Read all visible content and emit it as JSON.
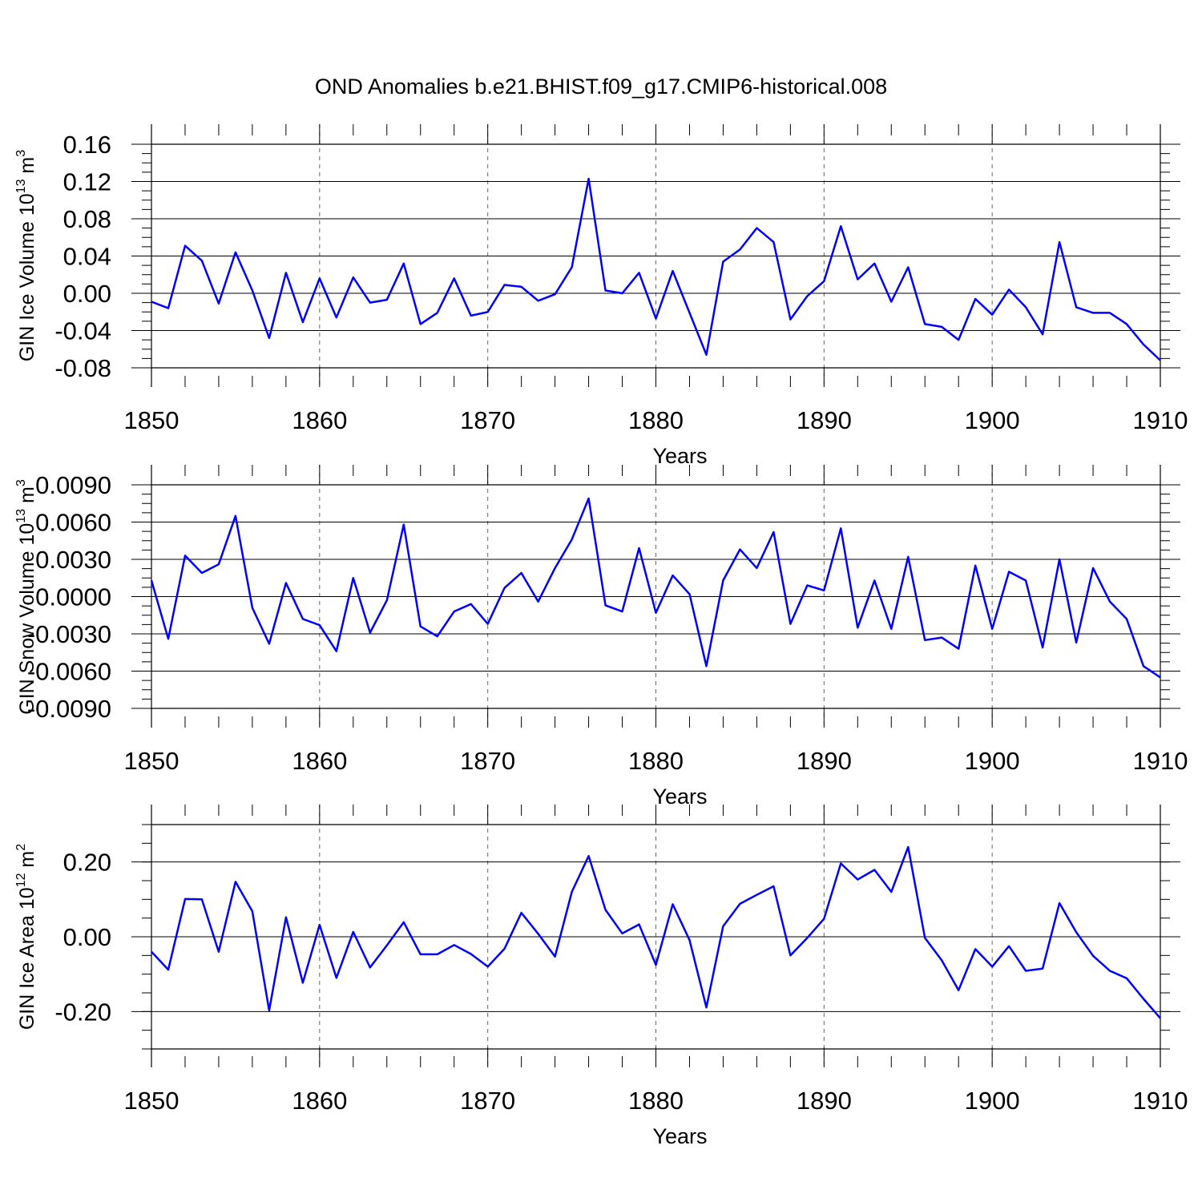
{
  "title": "OND Anomalies b.e21.BHIST.f09_g17.CMIP6-historical.008",
  "chart_data": [
    {
      "type": "line",
      "name": "ice-volume",
      "ylabel": "GIN Ice Volume 10",
      "ylabel_sup": "13",
      "ylabel_units": " m",
      "ylabel_units_sup": "3",
      "xlabel": "Years",
      "xlim": [
        1850,
        1910
      ],
      "ylim": [
        -0.08,
        0.16
      ],
      "yticks": [
        0.16,
        0.12,
        0.08,
        0.04,
        0.0,
        -0.04,
        -0.08
      ],
      "ytick_labels": [
        "0.16",
        "0.12",
        "0.08",
        "0.04",
        "0.00",
        "-0.04",
        "-0.08"
      ],
      "xticks": [
        1850,
        1860,
        1870,
        1880,
        1890,
        1900,
        1910
      ],
      "xtick_labels": [
        "1850",
        "1860",
        "1870",
        "1880",
        "1890",
        "1900",
        "1910"
      ],
      "color": "#0000ff",
      "x_start": 1850,
      "values": [
        -0.009,
        -0.016,
        0.051,
        0.035,
        -0.011,
        0.044,
        0.003,
        -0.048,
        0.022,
        -0.031,
        0.016,
        -0.026,
        0.017,
        -0.01,
        -0.007,
        0.032,
        -0.033,
        -0.021,
        0.016,
        -0.024,
        -0.02,
        0.009,
        0.007,
        -0.008,
        -0.001,
        0.028,
        0.123,
        0.003,
        0.0,
        0.022,
        -0.027,
        0.024,
        -0.021,
        -0.066,
        0.034,
        0.047,
        0.07,
        0.055,
        -0.028,
        -0.003,
        0.013,
        0.072,
        0.015,
        0.032,
        -0.009,
        0.028,
        -0.033,
        -0.036,
        -0.05,
        -0.006,
        -0.023,
        0.004,
        -0.015,
        -0.044,
        0.055,
        -0.015,
        -0.021,
        -0.021,
        -0.033,
        -0.055,
        -0.072
      ]
    },
    {
      "type": "line",
      "name": "snow-volume",
      "ylabel": "GIN Snow Volume 10",
      "ylabel_sup": "13",
      "ylabel_units": " m",
      "ylabel_units_sup": "3",
      "xlabel": "Years",
      "xlim": [
        1850,
        1910
      ],
      "ylim": [
        -0.009,
        0.009
      ],
      "yticks": [
        0.009,
        0.006,
        0.003,
        0.0,
        -0.003,
        -0.006,
        -0.009
      ],
      "ytick_labels": [
        "0.0090",
        "0.0060",
        "0.0030",
        "0.0000",
        "-0.0030",
        "-0.0060",
        "-0.0090"
      ],
      "xticks": [
        1850,
        1860,
        1870,
        1880,
        1890,
        1900,
        1910
      ],
      "xtick_labels": [
        "1850",
        "1860",
        "1870",
        "1880",
        "1890",
        "1900",
        "1910"
      ],
      "color": "#0000ff",
      "x_start": 1850,
      "values": [
        0.0013,
        -0.0034,
        0.0033,
        0.0019,
        0.0026,
        0.0065,
        -0.0009,
        -0.0038,
        0.0011,
        -0.0018,
        -0.0023,
        -0.0044,
        0.0015,
        -0.0029,
        -0.0003,
        0.0058,
        -0.0024,
        -0.0032,
        -0.0012,
        -0.0006,
        -0.0022,
        0.0007,
        0.0019,
        -0.0004,
        0.0023,
        0.0046,
        0.0079,
        -0.0007,
        -0.0012,
        0.0039,
        -0.0013,
        0.0017,
        0.0002,
        -0.0056,
        0.0013,
        0.0038,
        0.0023,
        0.0052,
        -0.0022,
        0.0009,
        0.0005,
        0.0055,
        -0.0025,
        0.0013,
        -0.0026,
        0.0032,
        -0.0035,
        -0.0033,
        -0.0042,
        0.0025,
        -0.0026,
        0.002,
        0.0013,
        -0.0041,
        0.003,
        -0.0037,
        0.0023,
        -0.0004,
        -0.0018,
        -0.0056,
        -0.0065
      ]
    },
    {
      "type": "line",
      "name": "ice-area",
      "ylabel": "GIN Ice Area 10",
      "ylabel_sup": "12",
      "ylabel_units": " m",
      "ylabel_units_sup": "2",
      "xlabel": "Years",
      "xlim": [
        1850,
        1910
      ],
      "ylim": [
        -0.3,
        0.3
      ],
      "yticks": [
        0.2,
        0.0,
        -0.2
      ],
      "ytick_labels": [
        "0.20",
        "0.00",
        "-0.20"
      ],
      "xticks": [
        1850,
        1860,
        1870,
        1880,
        1890,
        1900,
        1910
      ],
      "xtick_labels": [
        "1850",
        "1860",
        "1870",
        "1880",
        "1890",
        "1900",
        "1910"
      ],
      "color": "#0000ff",
      "x_start": 1850,
      "values": [
        -0.04,
        -0.088,
        0.101,
        0.1,
        -0.04,
        0.147,
        0.068,
        -0.197,
        0.052,
        -0.123,
        0.032,
        -0.11,
        0.013,
        -0.082,
        -0.023,
        0.039,
        -0.047,
        -0.047,
        -0.022,
        -0.046,
        -0.08,
        -0.032,
        0.064,
        0.008,
        -0.053,
        0.12,
        0.216,
        0.072,
        0.009,
        0.033,
        -0.075,
        0.087,
        -0.009,
        -0.189,
        0.028,
        0.088,
        0.112,
        0.135,
        -0.05,
        -0.003,
        0.048,
        0.196,
        0.153,
        0.179,
        0.12,
        0.24,
        -0.003,
        -0.063,
        -0.143,
        -0.033,
        -0.08,
        -0.025,
        -0.091,
        -0.085,
        0.09,
        0.012,
        -0.051,
        -0.091,
        -0.111,
        -0.166,
        -0.218
      ]
    }
  ]
}
